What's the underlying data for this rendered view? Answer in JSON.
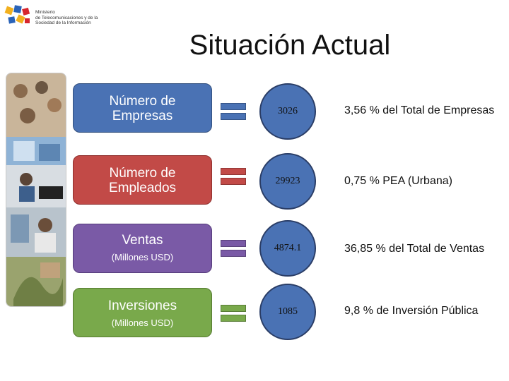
{
  "header": {
    "ministry_lines": [
      "Ministerio",
      "de Telecomunicaciones y de la",
      "Sociedad de la Información"
    ],
    "title": "Situación Actual"
  },
  "colors": {
    "blue": "#4a72b4",
    "red": "#c24a47",
    "purple": "#7a5aa6",
    "green": "#79a94b",
    "circle_fill": "#4a72b4"
  },
  "rows": [
    {
      "label": "Número de Empresas",
      "sub": "",
      "value": "3026",
      "desc": "3,56 % del Total de Empresas"
    },
    {
      "label": "Número de Empleados",
      "sub": "",
      "value": "29923",
      "desc": "0,75 % PEA (Urbana)"
    },
    {
      "label": "Ventas",
      "sub": "(Millones USD)",
      "value": "4874.1",
      "desc": "36,85 %  del Total de Ventas"
    },
    {
      "label": "Inversiones",
      "sub": "(Millones USD)",
      "value": "1085",
      "desc": "9,8 % de Inversión Pública"
    }
  ]
}
